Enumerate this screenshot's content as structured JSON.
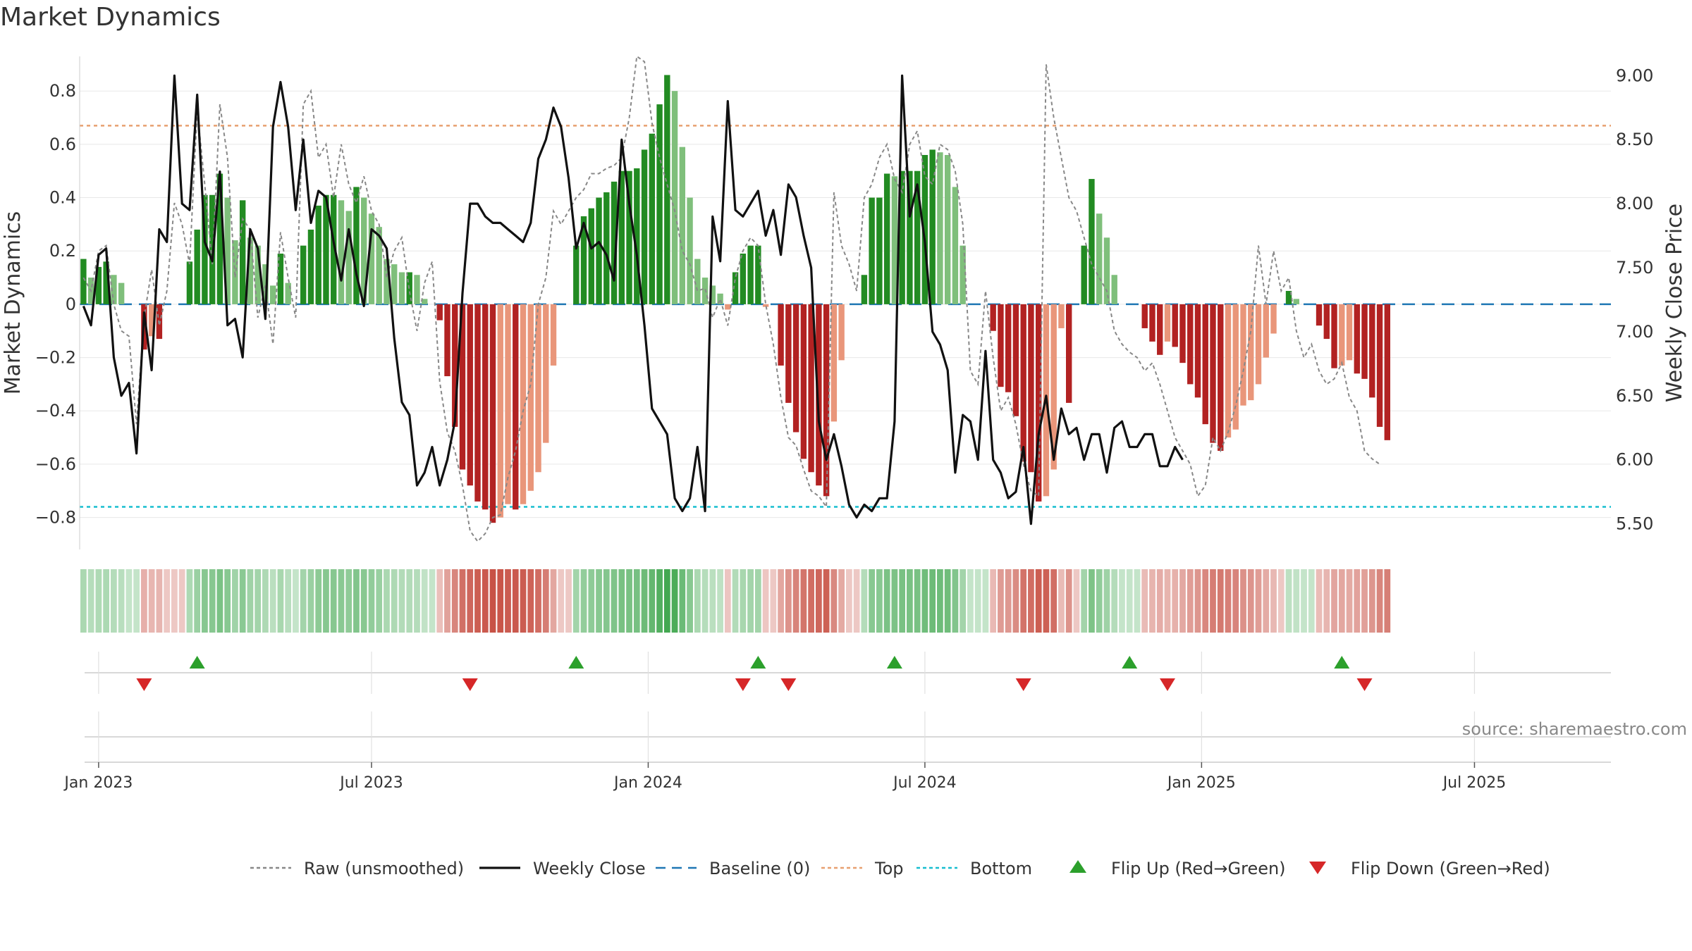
{
  "title": "Market Dynamics",
  "source": "source: sharemaestro.com",
  "chart_data": {
    "type": "bar",
    "title": "Market Dynamics",
    "ylabel_left": "Market Dynamics",
    "ylabel_right": "Weekly Close Price",
    "ylim_left": [
      -0.92,
      0.93
    ],
    "ylim_right": [
      5.3,
      9.15
    ],
    "left_ticks": [
      "0.8",
      "0.6",
      "0.4",
      "0.2",
      "0",
      "−0.2",
      "−0.4",
      "−0.6",
      "−0.8"
    ],
    "left_tick_values": [
      0.8,
      0.6,
      0.4,
      0.2,
      0,
      -0.2,
      -0.4,
      -0.6,
      -0.8
    ],
    "right_ticks": [
      "9.00",
      "8.50",
      "8.00",
      "7.50",
      "7.00",
      "6.50",
      "6.00",
      "5.50"
    ],
    "right_tick_values": [
      9.0,
      8.5,
      8.0,
      7.5,
      7.0,
      6.5,
      6.0,
      5.5
    ],
    "x_ticks": [
      "Jan 2023",
      "Jul 2023",
      "Jan 2024",
      "Jul 2024",
      "Jan 2025",
      "Jul 2025"
    ],
    "x_tick_weeks": [
      2.5,
      38.5,
      75,
      111.5,
      148,
      184
    ],
    "top_level": 0.67,
    "bottom_level": -0.76,
    "baseline": 0,
    "weeks": 202,
    "dynamics": [
      0.17,
      0.1,
      0.14,
      0.16,
      0.11,
      0.08,
      0.0,
      0.0,
      -0.17,
      -0.12,
      -0.13,
      0.0,
      0.0,
      0.0,
      0.16,
      0.28,
      0.41,
      0.41,
      0.49,
      0.4,
      0.24,
      0.39,
      0.25,
      0.22,
      0.15,
      0.07,
      0.19,
      0.08,
      0.0,
      0.22,
      0.28,
      0.37,
      0.41,
      0.41,
      0.39,
      0.35,
      0.44,
      0.4,
      0.34,
      0.29,
      0.17,
      0.15,
      0.12,
      0.12,
      0.11,
      0.02,
      0.0,
      -0.06,
      -0.27,
      -0.46,
      -0.62,
      -0.68,
      -0.74,
      -0.77,
      -0.82,
      -0.8,
      -0.75,
      -0.77,
      -0.75,
      -0.7,
      -0.63,
      -0.52,
      -0.23,
      0.0,
      0.0,
      0.22,
      0.33,
      0.36,
      0.4,
      0.42,
      0.46,
      0.5,
      0.5,
      0.51,
      0.58,
      0.64,
      0.75,
      0.86,
      0.8,
      0.59,
      0.4,
      0.17,
      0.1,
      0.07,
      0.04,
      -0.02,
      0.12,
      0.19,
      0.22,
      0.22,
      -0.01,
      0.0,
      -0.23,
      -0.37,
      -0.48,
      -0.58,
      -0.63,
      -0.68,
      -0.72,
      -0.44,
      -0.21,
      0.0,
      0.0,
      0.11,
      0.4,
      0.4,
      0.49,
      0.48,
      0.5,
      0.5,
      0.5,
      0.56,
      0.58,
      0.57,
      0.56,
      0.44,
      0.22,
      0.0,
      0.0,
      0.0,
      -0.1,
      -0.31,
      -0.33,
      -0.42,
      -0.59,
      -0.63,
      -0.74,
      -0.72,
      -0.62,
      -0.09,
      -0.37,
      0.0,
      0.22,
      0.47,
      0.34,
      0.25,
      0.11,
      0.0,
      0.0,
      0.0,
      -0.09,
      -0.14,
      -0.19,
      -0.14,
      -0.16,
      -0.22,
      -0.3,
      -0.35,
      -0.45,
      -0.52,
      -0.55,
      -0.5,
      -0.47,
      -0.38,
      -0.36,
      -0.3,
      -0.2,
      -0.11,
      0.0,
      0.05,
      0.02,
      0.0,
      0.0,
      -0.08,
      -0.13,
      -0.24,
      -0.23,
      -0.21,
      -0.26,
      -0.28,
      -0.35,
      -0.46,
      -0.51
    ],
    "raw": [
      0.1,
      0.05,
      0.2,
      0.22,
      0.0,
      -0.1,
      -0.12,
      -0.45,
      -0.05,
      0.13,
      -0.08,
      0.05,
      0.38,
      0.3,
      0.15,
      0.73,
      0.45,
      0.15,
      0.75,
      0.55,
      0.1,
      0.32,
      0.28,
      -0.05,
      0.07,
      -0.15,
      0.27,
      0.1,
      -0.05,
      0.75,
      0.8,
      0.55,
      0.6,
      0.4,
      0.6,
      0.45,
      0.38,
      0.48,
      0.35,
      0.3,
      0.1,
      0.2,
      0.25,
      0.05,
      -0.1,
      0.08,
      0.16,
      -0.29,
      -0.48,
      -0.55,
      -0.68,
      -0.85,
      -0.89,
      -0.86,
      -0.8,
      -0.79,
      -0.65,
      -0.55,
      -0.4,
      -0.3,
      0.0,
      0.1,
      0.35,
      0.3,
      0.35,
      0.4,
      0.43,
      0.49,
      0.49,
      0.51,
      0.52,
      0.55,
      0.7,
      0.93,
      0.91,
      0.68,
      0.55,
      0.45,
      0.35,
      0.2,
      0.15,
      0.05,
      0.06,
      -0.05,
      0.02,
      -0.08,
      0.1,
      0.2,
      0.25,
      0.22,
      0.0,
      -0.15,
      -0.35,
      -0.5,
      -0.53,
      -0.62,
      -0.7,
      -0.72,
      -0.76,
      0.42,
      0.22,
      0.15,
      0.05,
      0.4,
      0.45,
      0.55,
      0.6,
      0.47,
      0.42,
      0.6,
      0.65,
      0.48,
      0.45,
      0.6,
      0.58,
      0.5,
      0.3,
      -0.25,
      -0.3,
      0.05,
      -0.2,
      -0.4,
      -0.35,
      -0.45,
      -0.6,
      -0.7,
      -0.72,
      0.9,
      0.7,
      0.55,
      0.4,
      0.35,
      0.25,
      0.15,
      0.1,
      0.05,
      -0.1,
      -0.15,
      -0.18,
      -0.2,
      -0.25,
      -0.22,
      -0.3,
      -0.4,
      -0.5,
      -0.55,
      -0.6,
      -0.72,
      -0.68,
      -0.5,
      -0.55,
      -0.48,
      -0.38,
      -0.25,
      -0.1,
      0.22,
      0.0,
      0.2,
      0.05,
      0.1,
      -0.1,
      -0.2,
      -0.15,
      -0.25,
      -0.3,
      -0.28,
      -0.22,
      -0.35,
      -0.4,
      -0.55,
      -0.58,
      -0.6
    ],
    "close": [
      7.2,
      7.05,
      7.6,
      7.65,
      6.8,
      6.5,
      6.6,
      6.05,
      7.15,
      6.7,
      7.8,
      7.7,
      9.0,
      8.0,
      7.95,
      8.85,
      7.7,
      7.55,
      8.25,
      7.05,
      7.1,
      6.8,
      7.8,
      7.65,
      7.1,
      8.6,
      8.95,
      8.6,
      7.95,
      8.5,
      7.85,
      8.1,
      8.05,
      7.7,
      7.4,
      7.8,
      7.45,
      7.2,
      7.8,
      7.75,
      7.65,
      6.95,
      6.45,
      6.35,
      5.8,
      5.9,
      6.1,
      5.8,
      6.0,
      6.3,
      7.3,
      8.0,
      8.0,
      7.9,
      7.85,
      7.85,
      7.8,
      7.75,
      7.7,
      7.85,
      8.35,
      8.5,
      8.75,
      8.6,
      8.2,
      7.65,
      7.85,
      7.65,
      7.7,
      7.6,
      7.4,
      8.5,
      8.0,
      7.6,
      7.05,
      6.4,
      6.3,
      6.2,
      5.7,
      5.6,
      5.7,
      6.1,
      5.6,
      7.9,
      7.55,
      8.8,
      7.95,
      7.9,
      8.0,
      8.1,
      7.75,
      7.95,
      7.6,
      8.15,
      8.05,
      7.75,
      7.5,
      6.3,
      6.0,
      6.2,
      5.95,
      5.65,
      5.55,
      5.65,
      5.6,
      5.7,
      5.7,
      6.3,
      9.0,
      7.9,
      8.15,
      7.7,
      7.0,
      6.9,
      6.7,
      5.9,
      6.35,
      6.3,
      6.0,
      6.85,
      6.0,
      5.9,
      5.7,
      5.75,
      6.1,
      5.5,
      6.2,
      6.5,
      6.0,
      6.4,
      6.2,
      6.25,
      6.0,
      6.2,
      6.2,
      5.9,
      6.25,
      6.3,
      6.1,
      6.1,
      6.2,
      6.2,
      5.95,
      5.95,
      6.1,
      6.0
    ],
    "flip_up_weeks": [
      15,
      65,
      89,
      107,
      138,
      166
    ],
    "flip_down_weeks": [
      8,
      51,
      87,
      93,
      124,
      143,
      169
    ],
    "legend": [
      {
        "label": "Raw (unsmoothed)",
        "style": "dotted",
        "color": "#888888"
      },
      {
        "label": "Weekly Close",
        "style": "solid",
        "color": "#111111"
      },
      {
        "label": "Baseline (0)",
        "style": "dashed",
        "color": "#1f77b4"
      },
      {
        "label": "Top",
        "style": "dotted",
        "color": "#e8a070"
      },
      {
        "label": "Bottom",
        "style": "dotted",
        "color": "#17becf"
      },
      {
        "label": "Flip Up (Red→Green)",
        "style": "triangle-up",
        "color": "#2ca02c"
      },
      {
        "label": "Flip Down (Green→Red)",
        "style": "triangle-down",
        "color": "#d62728"
      }
    ],
    "legend_position": "bottom-center"
  },
  "colors": {
    "green_strong": "#228B22",
    "green_light": "#7fbf7b",
    "red_strong": "#b22222",
    "red_light": "#e9967a",
    "grid": "#e8e8e8"
  }
}
